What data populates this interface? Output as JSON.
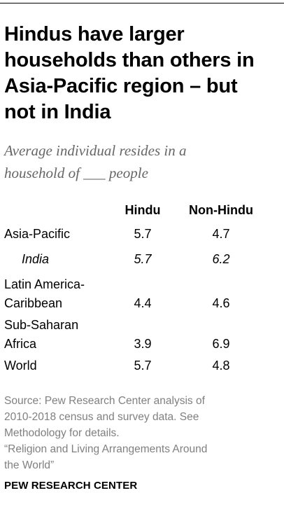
{
  "chart_data": {
    "type": "table",
    "title": "Hindus have larger households than others in Asia-Pacific region – but not in India",
    "subtitle_lines": [
      "Average individual resides in a",
      "household of ___ people"
    ],
    "columns": [
      "Hindu",
      "Non-Hindu"
    ],
    "rows": [
      {
        "label_lines": [
          "Asia-Pacific"
        ],
        "hindu": "5.7",
        "non_hindu": "4.7",
        "italic": false
      },
      {
        "label_lines": [
          "India"
        ],
        "hindu": "5.7",
        "non_hindu": "6.2",
        "italic": true
      },
      {
        "label_lines": [
          "Latin America-",
          "Caribbean"
        ],
        "hindu": "4.4",
        "non_hindu": "4.6",
        "italic": false
      },
      {
        "label_lines": [
          "Sub-Saharan",
          "Africa"
        ],
        "hindu": "3.9",
        "non_hindu": "6.9",
        "italic": false
      },
      {
        "label_lines": [
          "World"
        ],
        "hindu": "5.7",
        "non_hindu": "4.8",
        "italic": false
      }
    ]
  },
  "title_lines": [
    "Hindus have larger",
    "households than others in",
    "Asia-Pacific region – but",
    "not in India"
  ],
  "source_lines": [
    "Source: Pew Research Center analysis of",
    "2010-2018 census and survey data. See",
    "Methodology for details.",
    "“Religion and Living Arrangements Around",
    "the World”"
  ],
  "footer": "PEW RESEARCH CENTER"
}
